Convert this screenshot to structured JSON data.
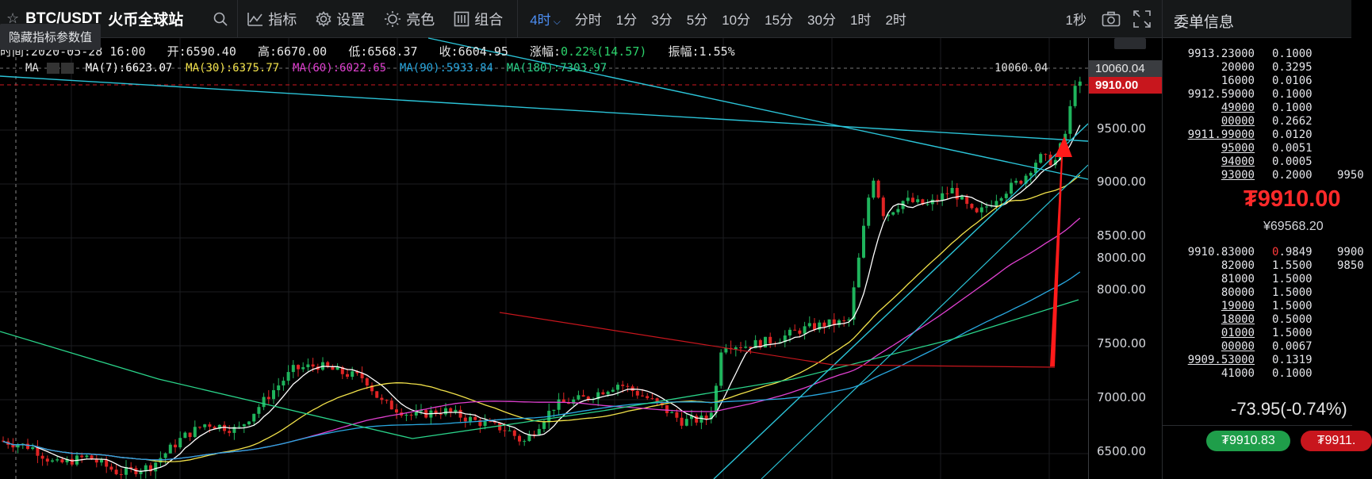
{
  "toolbar": {
    "symbol": "BTC/USDT",
    "site": "火币全球站",
    "indicators_label": "指标",
    "settings_label": "设置",
    "theme_label": "亮色",
    "combo_label": "组合",
    "active_interval": "4时",
    "intervals": [
      "分时",
      "1分",
      "3分",
      "5分",
      "10分",
      "15分",
      "30分",
      "1时",
      "2时"
    ],
    "refresh": "1秒"
  },
  "hide_button": "隐藏指标参数值",
  "ohlc": {
    "time": "时间:2020-05-28 16:00",
    "open": "开:6590.40",
    "high": "高:6670.00",
    "low": "低:6568.37",
    "close": "收:6604.95",
    "change_label": "涨幅:",
    "change_value": "0.22%(14.57)",
    "amplitude": "振幅:1.55%"
  },
  "ma": {
    "label": "MA",
    "ma7": "MA(7):6623.07",
    "ma30": "MA(30):6375.77",
    "ma60": "MA(60):6022.65",
    "ma90": "MA(90):5933.84",
    "ma180": "MA(180):7303.97",
    "colors": {
      "ma7": "#ffffff",
      "ma30": "#f2e24a",
      "ma60": "#e040d0",
      "ma90": "#29a8e0",
      "ma180": "#2ad48a"
    }
  },
  "high_marker": "10060.04",
  "y_axis": {
    "labels": [
      "10060.04",
      "9910.00",
      "9500.00",
      "9000.00",
      "8500.00",
      "8000.00",
      "7500.00",
      "7000.00",
      "6500.00"
    ]
  },
  "order_book": {
    "title": "委单信息",
    "asks": [
      {
        "price": "9913.23000",
        "amount": "0.1000",
        "total": ""
      },
      {
        "price": "20000",
        "amount": "0.3295",
        "total": ""
      },
      {
        "price": "16000",
        "amount": "0.0106",
        "total": ""
      },
      {
        "price": "9912.59000",
        "amount": "0.1000",
        "total": ""
      },
      {
        "price": "49000",
        "amount": "0.1000",
        "total": ""
      },
      {
        "price": "00000",
        "amount": "0.2662",
        "total": ""
      },
      {
        "price": "9911.99000",
        "amount": "0.0120",
        "total": ""
      },
      {
        "price": "95000",
        "amount": "0.0051",
        "total": ""
      },
      {
        "price": "94000",
        "amount": "0.0005",
        "total": ""
      },
      {
        "price": "93000",
        "amount": "0.2000",
        "total": "9950"
      }
    ],
    "last_price": "₮9910.00",
    "last_cny": "¥69568.20",
    "bids": [
      {
        "price": "9910.83000",
        "amount": "0.9849",
        "total": "9900"
      },
      {
        "price": "82000",
        "amount": "1.5500",
        "total": "9850"
      },
      {
        "price": "81000",
        "amount": "1.5000",
        "total": ""
      },
      {
        "price": "80000",
        "amount": "1.5000",
        "total": ""
      },
      {
        "price": "19000",
        "amount": "1.5000",
        "total": ""
      },
      {
        "price": "18000",
        "amount": "0.5000",
        "total": ""
      },
      {
        "price": "01000",
        "amount": "1.5000",
        "total": ""
      },
      {
        "price": "00000",
        "amount": "0.0067",
        "total": ""
      },
      {
        "price": "9909.53000",
        "amount": "0.1319",
        "total": ""
      },
      {
        "price": "41000",
        "amount": "0.1000",
        "total": ""
      }
    ],
    "change": "-73.95(-0.74%)",
    "buy_price": "₮9910.83",
    "sell_price": "₮9911."
  }
}
